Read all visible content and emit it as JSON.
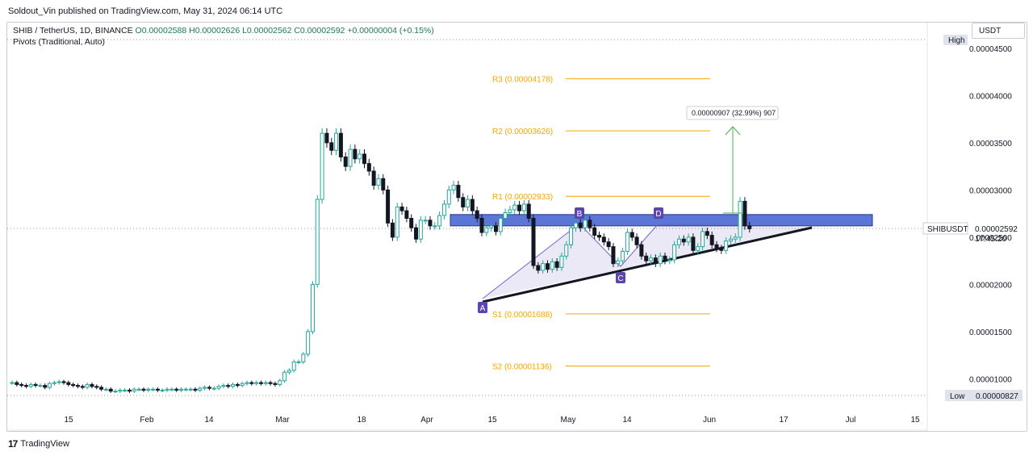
{
  "publisher": "Soldout_Vin published on TradingView.com, May 31, 2024 06:14 UTC",
  "legend": {
    "symbol": "SHIB / TetherUS, 1D, BINANCE",
    "open": "O0.00002588",
    "high": "H0.00002626",
    "low": "L0.00002562",
    "close": "C0.00002592",
    "change": "+0.00000004 (+0.15%)",
    "indicator": "Pivots (Traditional, Auto)"
  },
  "currency_button": "USDT",
  "brand": "TradingView",
  "colors": {
    "up": "#26a69a",
    "down": "#131722",
    "pivot": "#f7a600",
    "zone": "#3e5ecf",
    "label": "#5b46b0",
    "arrow": "#4caf50"
  },
  "chart_data": {
    "type": "candlestick",
    "symbol": "SHIBUSDT",
    "y_axis_labels": [
      "0.00004500",
      "0.00004000",
      "0.00003500",
      "0.00003000",
      "0.00002500",
      "0.00002000",
      "0.00001500",
      "0.00001000"
    ],
    "x_axis_labels": [
      "15",
      "Feb",
      "14",
      "Mar",
      "18",
      "Apr",
      "15",
      "May",
      "14",
      "Jun",
      "17",
      "Jul",
      "15"
    ],
    "high_label": "High",
    "low_label": "Low",
    "low_value": "0.00000827",
    "last_price_label": "SHIBUSDT",
    "last_price": "0.00002592",
    "countdown": "17:45:20",
    "pivots": [
      {
        "label": "R3 (0.00004178)",
        "value": 4.178e-05
      },
      {
        "label": "R2 (0.00003626)",
        "value": 3.626e-05
      },
      {
        "label": "R1 (0.00002933)",
        "value": 2.933e-05
      },
      {
        "label": "S1 (0.00001688)",
        "value": 1.688e-05
      },
      {
        "label": "S2 (0.00001136)",
        "value": 1.136e-05
      }
    ],
    "measure_label": "0.00000907 (32.99%) 907",
    "pattern_points": [
      "A",
      "B",
      "C",
      "D"
    ],
    "resistance_zone": [
      2.62e-05,
      2.74e-05
    ],
    "closes": [
      9.6e-06,
      9.4e-06,
      9.3e-06,
      9.2e-06,
      9.4e-06,
      9.3e-06,
      9.3e-06,
      9.1e-06,
      9.5e-06,
      9.6e-06,
      9.7e-06,
      9.6e-06,
      9.4e-06,
      9.3e-06,
      9.2e-06,
      9.1e-06,
      9.4e-06,
      9.2e-06,
      9.1e-06,
      8.9e-06,
      8.9e-06,
      8.7e-06,
      8.7e-06,
      8.8e-06,
      8.8e-06,
      8.7e-06,
      8.9e-06,
      8.9e-06,
      8.8e-06,
      8.9e-06,
      8.9e-06,
      8.8e-06,
      8.8e-06,
      8.9e-06,
      8.9e-06,
      8.8e-06,
      8.9e-06,
      8.9e-06,
      8.9e-06,
      8.8e-06,
      9e-06,
      9.1e-06,
      9e-06,
      9e-06,
      9.2e-06,
      9.3e-06,
      9.2e-06,
      9.4e-06,
      9.3e-06,
      9.5e-06,
      9.6e-06,
      9.5e-06,
      9.6e-06,
      9.5e-06,
      9.6e-06,
      9.5e-06,
      9.4e-06,
      9.8e-06,
      1.07e-05,
      1.09e-05,
      1.18e-05,
      1.18e-05,
      1.26e-05,
      1.5e-05,
      2e-05,
      2.9e-05,
      3.6e-05,
      3.5e-05,
      3.42e-05,
      3.6e-05,
      3.35e-05,
      3.25e-05,
      3.43e-05,
      3.33e-05,
      3.38e-05,
      3.28e-05,
      3.2e-05,
      3.05e-05,
      3.12e-05,
      3e-05,
      2.65e-05,
      2.5e-05,
      2.82e-05,
      2.78e-05,
      2.7e-05,
      2.6e-05,
      2.48e-05,
      2.68e-05,
      2.68e-05,
      2.62e-05,
      2.62e-05,
      2.73e-05,
      2.85e-05,
      3e-05,
      3.05e-05,
      2.92e-05,
      2.82e-05,
      2.9e-05,
      2.78e-05,
      2.7e-05,
      2.55e-05,
      2.6e-05,
      2.62e-05,
      2.56e-05,
      2.7e-05,
      2.76e-05,
      2.79e-05,
      2.84e-05,
      2.78e-05,
      2.85e-05,
      2.7e-05,
      2.2e-05,
      2.15e-05,
      2.22e-05,
      2.16e-05,
      2.24e-05,
      2.18e-05,
      2.3e-05,
      2.42e-05,
      2.6e-05,
      2.65e-05,
      2.6e-05,
      2.68e-05,
      2.6e-05,
      2.52e-05,
      2.5e-05,
      2.45e-05,
      2.4e-05,
      2.22e-05,
      2.25e-05,
      2.35e-05,
      2.55e-05,
      2.5e-05,
      2.42e-05,
      2.3e-05,
      2.25e-05,
      2.28e-05,
      2.22e-05,
      2.3e-05,
      2.25e-05,
      2.26e-05,
      2.42e-05,
      2.48e-05,
      2.45e-05,
      2.5e-05,
      2.36e-05,
      2.4e-05,
      2.56e-05,
      2.52e-05,
      2.42e-05,
      2.38e-05,
      2.36e-05,
      2.46e-05,
      2.48e-05,
      2.5e-05,
      2.88e-05,
      2.62e-05,
      2.59e-05
    ]
  }
}
